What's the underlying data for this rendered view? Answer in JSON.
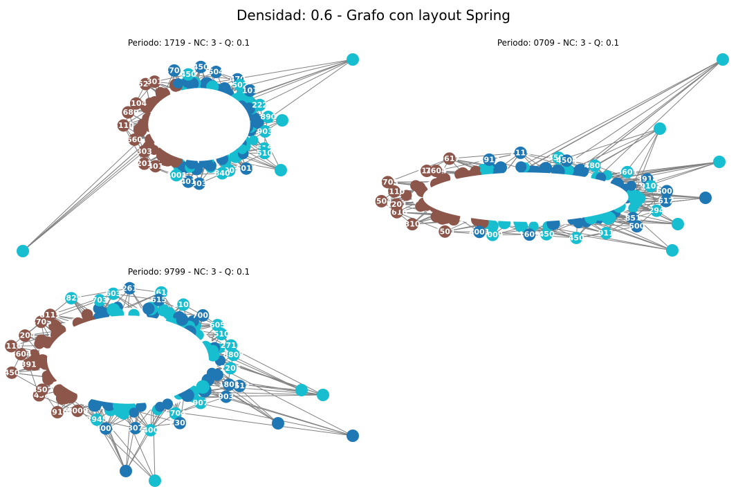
{
  "figure": {
    "title": "Densidad: 0.6 - Grafo con layout Spring"
  },
  "colors": {
    "edge": "#808080",
    "community_blue": "#1f77b4",
    "community_brown": "#8c564b",
    "community_cyan": "#17becf",
    "hub_fill": "#ffffff"
  },
  "panels": [
    {
      "title": "Periodo: 1719 - NC: 3 - Q: 0.1",
      "period": "1719",
      "nc": 3,
      "q": 0.1,
      "labels": [
        "903",
        "516",
        "510",
        "5016",
        "4003",
        "840",
        "303",
        "401",
        "4001",
        "401",
        "201",
        "303",
        "660",
        "5110",
        "2680",
        "3104",
        "524",
        "301",
        "4701",
        "450",
        "450",
        "504",
        "470",
        "502",
        "101",
        "222",
        "890"
      ]
    },
    {
      "title": "Periodo: 0709 - NC: 3 - Q: 0.1",
      "period": "0709",
      "nc": 3,
      "q": 0.1,
      "labels": [
        "617",
        "294",
        "851",
        "500",
        "911",
        "450",
        "450",
        "1609",
        "9009",
        "8001",
        "7501",
        "310",
        "2610",
        "1201",
        "2504",
        "5110",
        "6703",
        "7116",
        "7604",
        "9617",
        "3913",
        "2111",
        "4503",
        "4504",
        "4806",
        "5601",
        "3914",
        "9101",
        "6002"
      ]
    },
    {
      "title": "Periodo: 9799 - NC: 3 - Q: 0.1",
      "period": "9799",
      "nc": 3,
      "q": 0.1,
      "labels": [
        "1205",
        "1513",
        "1801",
        "903",
        "907",
        "6704",
        "2305",
        "400",
        "307",
        "4007",
        "2945",
        "9009",
        "2910",
        "2456",
        "4502",
        "450",
        "391",
        "5604",
        "7110",
        "1204",
        "4703",
        "8111",
        "2829",
        "703",
        "603",
        "261",
        "2614",
        "615",
        "8105",
        "7002",
        "605",
        "510",
        "2711",
        "8803"
      ]
    }
  ]
}
